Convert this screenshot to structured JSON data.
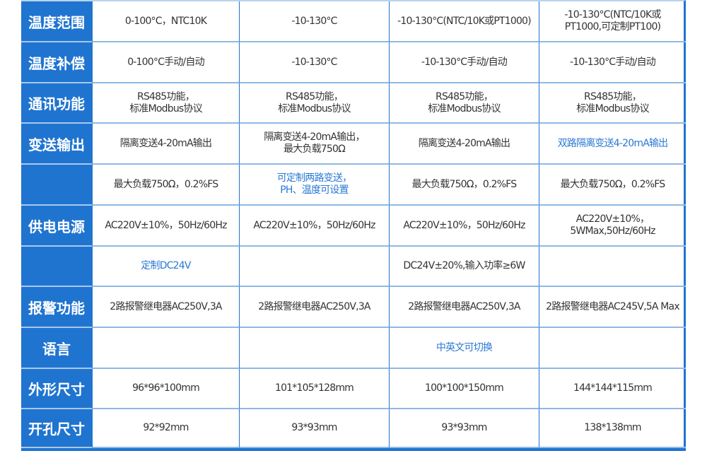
{
  "accent": "#1f74d0",
  "rows": [
    {
      "label": "温度范围",
      "cells": [
        "0-100°C，NTC10K",
        "-10-130°C",
        "-10-130°C(NTC/10K或PT1000)",
        "-10-130°C(NTC/10K或\nPT1000,可定制PT100)"
      ]
    },
    {
      "label": "温度补偿",
      "cells": [
        "0-100°C手动/自动",
        "-10-130°C",
        "-10-130°C手动/自动",
        "-10-130°C手动/自动"
      ]
    },
    {
      "label": "通讯功能",
      "cells": [
        "RS485功能，\n标准Modbus协议",
        "RS485功能，\n标准Modbus协议",
        "RS485功能，\n标准Modbus协议",
        "RS485功能，\n标准Modbus协议"
      ]
    },
    {
      "label": "变送输出",
      "cells": [
        "隔离变送4-20mA输出",
        "隔离变送4-20mA输出，\n最大负载750Ω",
        "隔离变送4-20mA输出",
        "双路隔离变送4-20mA输出"
      ],
      "blue": [
        3
      ]
    },
    {
      "label": "",
      "cells": [
        "最大负载750Ω，0.2%FS",
        "可定制两路变送，\nPH、温度可设置",
        "最大负载750Ω，0.2%FS",
        "最大负载750Ω，0.2%FS"
      ],
      "blue": [
        1
      ]
    },
    {
      "label": "供电电源",
      "cells": [
        "AC220V±10%，50Hz/60Hz",
        "AC220V±10%，50Hz/60Hz",
        "AC220V±10%，50Hz/60Hz",
        "AC220V±10%，\n5WMax,50Hz/60Hz"
      ]
    },
    {
      "label": "",
      "cells": [
        "定制DC24V",
        "",
        "DC24V±20%,输入功率≥6W",
        ""
      ],
      "blue": [
        0
      ]
    },
    {
      "label": "报警功能",
      "cells": [
        "2路报警继电器AC250V,3A",
        "2路报警继电器AC250V,3A",
        "2路报警继电器AC250V,3A",
        "2路报警继电器AC245V,5A Max"
      ]
    },
    {
      "label": "语言",
      "cells": [
        "",
        "",
        "中英文可切换",
        ""
      ],
      "blue": [
        2
      ]
    },
    {
      "label": "外形尺寸",
      "cells": [
        "96*96*100mm",
        "101*105*128mm",
        "100*100*150mm",
        "144*144*115mm"
      ]
    },
    {
      "label": "开孔尺寸",
      "cells": [
        "92*92mm",
        "93*93mm",
        "93*93mm",
        "138*138mm"
      ]
    }
  ]
}
